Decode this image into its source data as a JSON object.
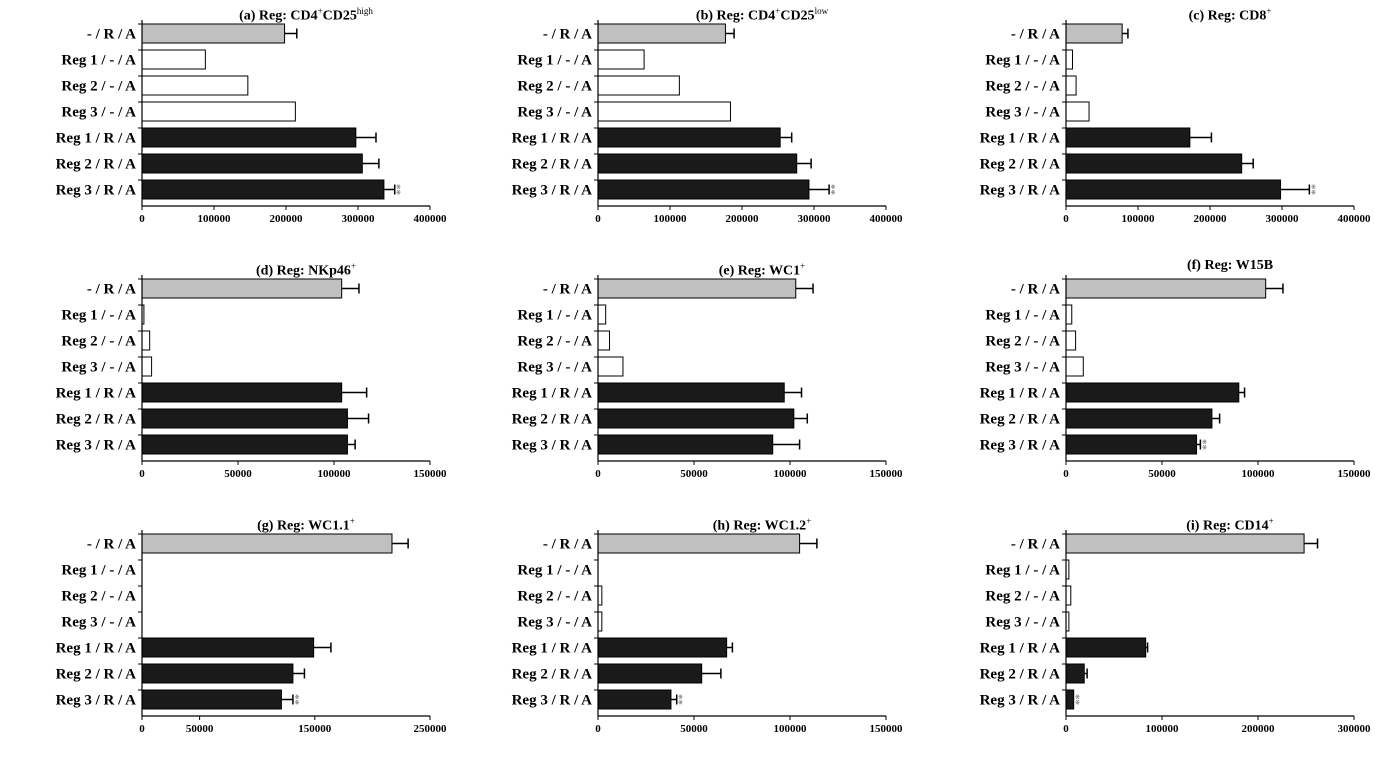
{
  "categories": [
    "- / R / A",
    "Reg 1 / - / A",
    "Reg 2 / - / A",
    "Reg 3 / - / A",
    "Reg 1 / R / A",
    "Reg 2 / R / A",
    "Reg 3 / R / A"
  ],
  "colors": {
    "control": "#c0c0c0",
    "reg_only": "#ffffff",
    "reg_r": "#1a1a1a",
    "outline": "#000000",
    "significance": "#888888"
  },
  "chart_data": [
    {
      "type": "bar",
      "orientation": "horizontal",
      "title_prefix": "(a) Reg: CD4",
      "title_sup1": "+",
      "title_mid": "CD25",
      "title_sup2": "high",
      "categories": [
        "- / R / A",
        "Reg 1 / - / A",
        "Reg 2 / - / A",
        "Reg 3 / - / A",
        "Reg 1 / R / A",
        "Reg 2 / R / A",
        "Reg 3 / R / A"
      ],
      "values": [
        198000,
        88000,
        147000,
        213000,
        297000,
        306000,
        336000
      ],
      "errors": [
        17000,
        0,
        0,
        0,
        28000,
        23000,
        15000
      ],
      "significance": [
        "",
        "",
        "",
        "",
        "",
        "",
        "**"
      ],
      "xlim": [
        0,
        400000
      ],
      "xticks": [
        0,
        100000,
        200000,
        300000,
        400000
      ]
    },
    {
      "type": "bar",
      "orientation": "horizontal",
      "title_prefix": "(b) Reg: CD4",
      "title_sup1": "+",
      "title_mid": "CD25",
      "title_sup2": "low",
      "categories": [
        "- / R / A",
        "Reg 1 / - / A",
        "Reg 2 / - / A",
        "Reg 3 / - / A",
        "Reg 1 / R / A",
        "Reg 2 / R / A",
        "Reg 3 / R / A"
      ],
      "values": [
        177000,
        64000,
        113000,
        184000,
        253000,
        276000,
        293000
      ],
      "errors": [
        12000,
        0,
        0,
        0,
        16000,
        20000,
        28000
      ],
      "significance": [
        "",
        "",
        "",
        "",
        "",
        "",
        "**"
      ],
      "xlim": [
        0,
        400000
      ],
      "xticks": [
        0,
        100000,
        200000,
        300000,
        400000
      ]
    },
    {
      "type": "bar",
      "orientation": "horizontal",
      "title_prefix": "(c) Reg: CD8",
      "title_sup1": "+",
      "title_mid": "",
      "title_sup2": "",
      "categories": [
        "- / R / A",
        "Reg 1 / - / A",
        "Reg 2 / - / A",
        "Reg 3 / - / A",
        "Reg 1 / R / A",
        "Reg 2 / R / A",
        "Reg 3 / R / A"
      ],
      "values": [
        78000,
        9000,
        14000,
        32000,
        172000,
        244000,
        298000
      ],
      "errors": [
        8000,
        0,
        0,
        0,
        30000,
        16000,
        40000
      ],
      "significance": [
        "",
        "",
        "",
        "",
        "",
        "",
        "**"
      ],
      "xlim": [
        0,
        400000
      ],
      "xticks": [
        0,
        100000,
        200000,
        300000,
        400000
      ]
    },
    {
      "type": "bar",
      "orientation": "horizontal",
      "title_prefix": "(d) Reg: NKp46",
      "title_sup1": "+",
      "title_mid": "",
      "title_sup2": "",
      "categories": [
        "- / R / A",
        "Reg 1 / - / A",
        "Reg 2 / - / A",
        "Reg 3 / - / A",
        "Reg 1 / R / A",
        "Reg 2 / R / A",
        "Reg 3 / R / A"
      ],
      "values": [
        104000,
        1000,
        4000,
        5000,
        104000,
        107000,
        107000
      ],
      "errors": [
        9000,
        0,
        0,
        0,
        13000,
        11000,
        4000
      ],
      "significance": [
        "",
        "",
        "",
        "",
        "",
        "",
        ""
      ],
      "xlim": [
        0,
        150000
      ],
      "xticks": [
        0,
        50000,
        100000,
        150000
      ]
    },
    {
      "type": "bar",
      "orientation": "horizontal",
      "title_prefix": "(e) Reg: WC1",
      "title_sup1": "+",
      "title_mid": "",
      "title_sup2": "",
      "categories": [
        "- / R / A",
        "Reg 1 / - / A",
        "Reg 2 / - / A",
        "Reg 3 / - / A",
        "Reg 1 / R / A",
        "Reg 2 / R / A",
        "Reg 3 / R / A"
      ],
      "values": [
        103000,
        4000,
        6000,
        13000,
        97000,
        102000,
        91000
      ],
      "errors": [
        9000,
        0,
        0,
        0,
        9000,
        7000,
        14000
      ],
      "significance": [
        "",
        "",
        "",
        "",
        "",
        "",
        ""
      ],
      "xlim": [
        0,
        150000
      ],
      "xticks": [
        0,
        50000,
        100000,
        150000
      ]
    },
    {
      "type": "bar",
      "orientation": "horizontal",
      "title_prefix": "(f) Reg: W15B",
      "title_sup1": "",
      "title_mid": "",
      "title_sup2": "",
      "categories": [
        "- / R / A",
        "Reg 1 / - / A",
        "Reg 2 / - / A",
        "Reg 3 / - / A",
        "Reg 1 / R / A",
        "Reg 2 / R / A",
        "Reg 3 / R / A"
      ],
      "values": [
        104000,
        3000,
        5000,
        9000,
        90000,
        76000,
        68000
      ],
      "errors": [
        9000,
        0,
        0,
        0,
        3000,
        4000,
        2000
      ],
      "significance": [
        "",
        "",
        "",
        "",
        "",
        "",
        "**"
      ],
      "xlim": [
        0,
        150000
      ],
      "xticks": [
        0,
        50000,
        100000,
        150000
      ]
    },
    {
      "type": "bar",
      "orientation": "horizontal",
      "title_prefix": "(g) Reg: WC1.1",
      "title_sup1": "+",
      "title_mid": "",
      "title_sup2": "",
      "categories": [
        "- / R / A",
        "Reg 1 / - / A",
        "Reg 2 / - / A",
        "Reg 3 / - / A",
        "Reg 1 / R / A",
        "Reg 2 / R / A",
        "Reg 3 / R / A"
      ],
      "values": [
        217000,
        0,
        0,
        0,
        149000,
        131000,
        121000
      ],
      "errors": [
        14000,
        0,
        0,
        0,
        15000,
        10000,
        10000
      ],
      "significance": [
        "",
        "",
        "",
        "",
        "",
        "",
        "**"
      ],
      "xlim": [
        0,
        250000
      ],
      "xticks": [
        0,
        50000,
        150000,
        250000
      ]
    },
    {
      "type": "bar",
      "orientation": "horizontal",
      "title_prefix": "(h) Reg: WC1.2",
      "title_sup1": "+",
      "title_mid": "",
      "title_sup2": "",
      "categories": [
        "- / R / A",
        "Reg 1 / - / A",
        "Reg 2 / - / A",
        "Reg 3 / - / A",
        "Reg 1 / R / A",
        "Reg 2 / R / A",
        "Reg 3 / R / A"
      ],
      "values": [
        105000,
        0,
        2000,
        2000,
        67000,
        54000,
        38000
      ],
      "errors": [
        9000,
        0,
        0,
        0,
        3000,
        10000,
        3000
      ],
      "significance": [
        "",
        "",
        "",
        "",
        "",
        "",
        "**"
      ],
      "xlim": [
        0,
        150000
      ],
      "xticks": [
        0,
        50000,
        100000,
        150000
      ]
    },
    {
      "type": "bar",
      "orientation": "horizontal",
      "title_prefix": "(i) Reg: CD14",
      "title_sup1": "+",
      "title_mid": "",
      "title_sup2": "",
      "categories": [
        "- / R / A",
        "Reg 1 / - / A",
        "Reg 2 / - / A",
        "Reg 3 / - / A",
        "Reg 1 / R / A",
        "Reg 2 / R / A",
        "Reg 3 / R / A"
      ],
      "values": [
        248000,
        3000,
        5000,
        3000,
        83000,
        19000,
        8000
      ],
      "errors": [
        14000,
        0,
        0,
        0,
        2000,
        3000,
        0
      ],
      "significance": [
        "",
        "",
        "",
        "",
        "",
        "",
        "**"
      ],
      "xlim": [
        0,
        300000
      ],
      "xticks": [
        0,
        100000,
        200000,
        300000
      ]
    }
  ]
}
